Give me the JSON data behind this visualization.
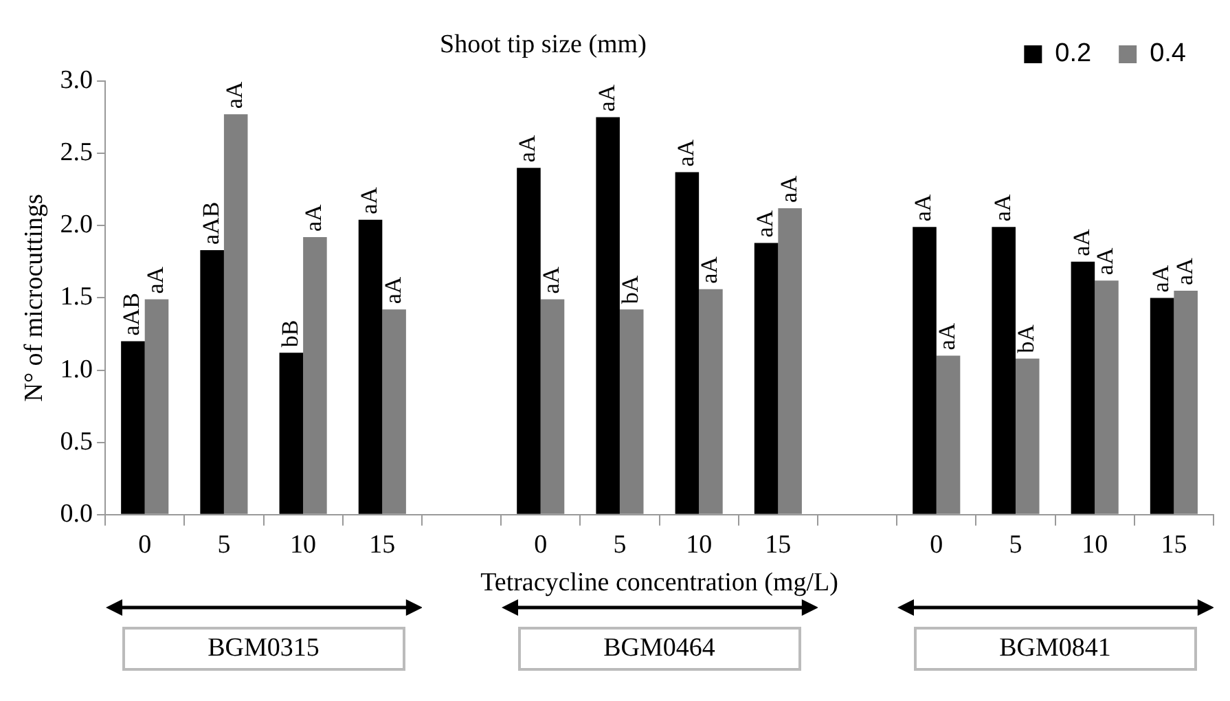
{
  "chart_data": {
    "type": "bar",
    "legend_title": "Shoot tip size (mm)",
    "xlabel": "Tetracycline concentration (mg/L)",
    "ylabel": "N° of microcuttings",
    "categories": [
      "0",
      "5",
      "10",
      "15",
      null,
      "0",
      "5",
      "10",
      "15",
      null,
      "0",
      "5",
      "10",
      "15"
    ],
    "series": [
      {
        "name": "0.2",
        "color": "#000000",
        "values": [
          1.2,
          1.83,
          1.12,
          2.04,
          null,
          2.4,
          2.75,
          2.37,
          1.88,
          null,
          1.99,
          1.99,
          1.75,
          1.5
        ],
        "value_labels": [
          "aAB",
          "aAB",
          "bB",
          "aA",
          null,
          "aA",
          "aA",
          "aA",
          "aA",
          null,
          "aA",
          "aA",
          "aA",
          "aA"
        ]
      },
      {
        "name": "0.4",
        "color": "#808080",
        "values": [
          1.49,
          2.77,
          1.92,
          1.42,
          null,
          1.49,
          1.42,
          1.56,
          2.12,
          null,
          1.1,
          1.08,
          1.62,
          1.55
        ],
        "value_labels": [
          "aA",
          "aA",
          "aA",
          "aA",
          null,
          "aA",
          "bA",
          "aA",
          "aA",
          null,
          "aA",
          "bA",
          "aA",
          "aA"
        ]
      }
    ],
    "ylim": [
      0,
      3
    ],
    "yticks": [
      {
        "value": 0,
        "label": "0.0"
      },
      0.5,
      {
        "value": 1,
        "label": "1.0"
      },
      1.5,
      {
        "value": 2,
        "label": "2.0"
      },
      2.5,
      {
        "value": 3,
        "label": "3.0"
      }
    ],
    "grid": false,
    "legend": "top right",
    "annotations": [
      "BGM0315",
      "BGM0464",
      "BGM0841"
    ]
  }
}
